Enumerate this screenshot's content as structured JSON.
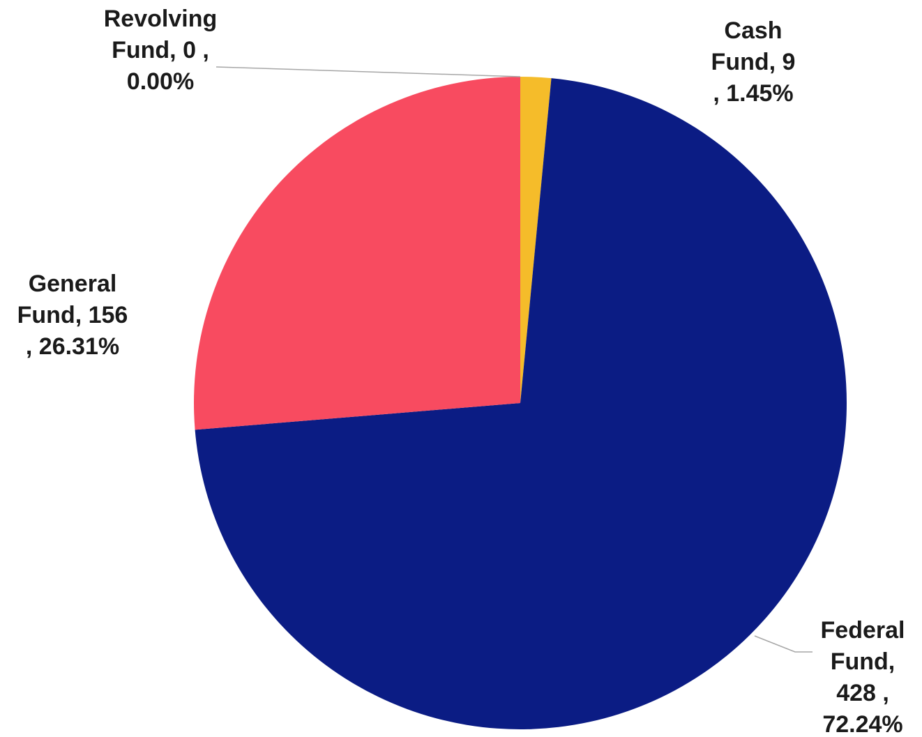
{
  "chart_data": {
    "type": "pie",
    "title": "",
    "slices": [
      {
        "category": "Cash Fund",
        "value": 9,
        "percent": "1.45%",
        "color": "#F5BC2A",
        "label_lines": [
          "Cash",
          "Fund, 9",
          ", 1.45%"
        ]
      },
      {
        "category": "Federal Fund",
        "value": 428,
        "percent": "72.24%",
        "color": "#0B1C84",
        "label_lines": [
          "Federal",
          "Fund,",
          "428 ,",
          "72.24%"
        ]
      },
      {
        "category": "General Fund",
        "value": 156,
        "percent": "26.31%",
        "color": "#F84B60",
        "label_lines": [
          "General",
          "Fund, 156",
          ", 26.31%"
        ]
      },
      {
        "category": "Revolving Fund",
        "value": 0,
        "percent": "0.00%",
        "color": "#7F7F7F",
        "label_lines": [
          "Revolving",
          "Fund, 0 ,",
          "0.00%"
        ]
      }
    ],
    "start_angle_deg": 0,
    "direction": "clockwise",
    "legend": "none"
  }
}
